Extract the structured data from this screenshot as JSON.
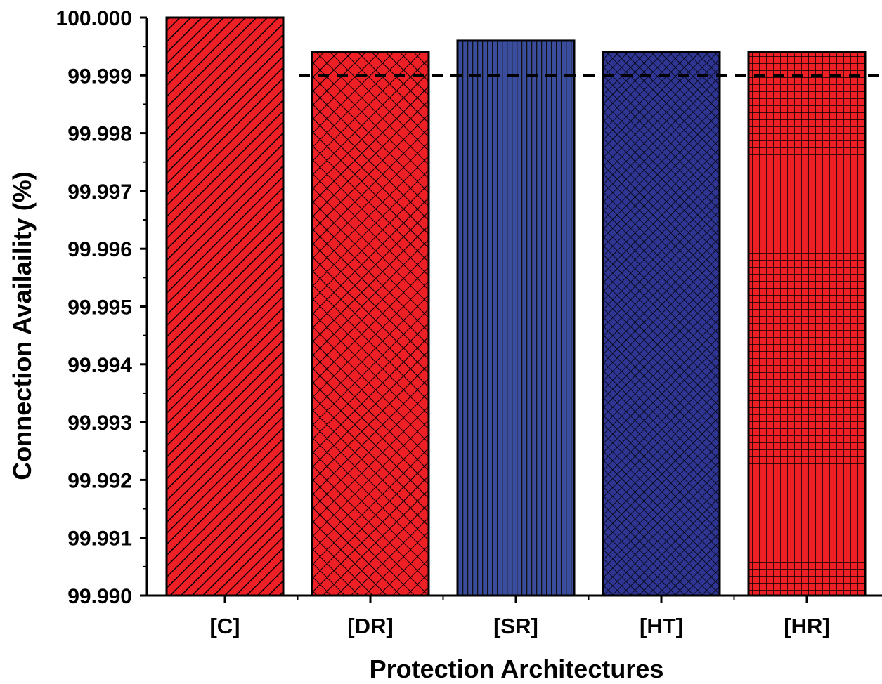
{
  "chart_data": {
    "type": "bar",
    "categories": [
      "[C]",
      "[DR]",
      "[SR]",
      "[HT]",
      "[HR]"
    ],
    "values": [
      100.0,
      99.9994,
      99.9996,
      99.9994,
      99.9994
    ],
    "colors": [
      "#ee1f25",
      "#ee1f25",
      "#3a4d9c",
      "#2e3592",
      "#ee1f25"
    ],
    "patterns": [
      "diagonal-hatch",
      "cross-hatch",
      "vertical-lines",
      "dense-cross-hatch",
      "grid"
    ],
    "xlabel": "Protection Architectures",
    "ylabel": "Connection Availaility (%)",
    "ylim": [
      99.99,
      100.0
    ],
    "yticks": [
      "99.990",
      "99.991",
      "99.992",
      "99.993",
      "99.994",
      "99.995",
      "99.996",
      "99.997",
      "99.998",
      "99.999",
      "100.000"
    ],
    "reference_line": {
      "y": 99.999,
      "style": "dashed"
    },
    "grid": false
  }
}
